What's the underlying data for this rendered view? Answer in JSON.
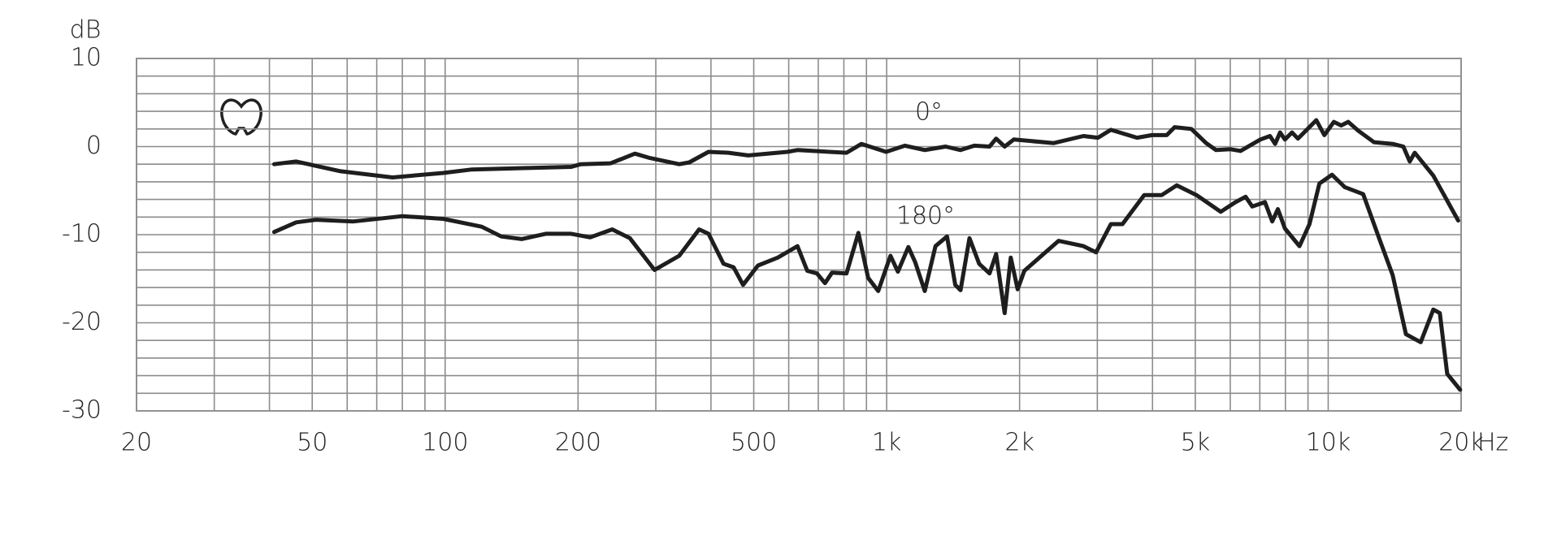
{
  "chart_data": {
    "type": "line",
    "x_label": "Hz",
    "y_label": "dB",
    "xscale": "log",
    "grid": true,
    "xlim": [
      20,
      20000
    ],
    "ylim": [
      -30,
      10
    ],
    "xticks": [
      20,
      50,
      100,
      200,
      500,
      {
        "value": 1000,
        "label": "1k"
      },
      {
        "value": 2000,
        "label": "2k"
      },
      {
        "value": 5000,
        "label": "5k"
      },
      {
        "value": 10000,
        "label": "10k"
      },
      {
        "value": 20000,
        "label": "20k"
      }
    ],
    "yticks": [
      10,
      0,
      -10,
      -20,
      -30
    ],
    "xminor": [
      30,
      40,
      60,
      70,
      80,
      90,
      300,
      400,
      600,
      700,
      800,
      900,
      3000,
      4000,
      6000,
      7000,
      8000,
      9000
    ],
    "yminor": [
      8,
      6,
      4,
      2,
      -2,
      -4,
      -6,
      -8,
      -12,
      -14,
      -16,
      -18,
      -22,
      -24,
      -26,
      -28
    ],
    "series": [
      {
        "name": "0°",
        "color": "#1e1e1e",
        "x": [
          41,
          46,
          58,
          76,
          99,
          115,
          193,
          203,
          237,
          269,
          291,
          339,
          357,
          395,
          438,
          486,
          596,
          628,
          811,
          877,
          997,
          1100,
          1220,
          1360,
          1470,
          1580,
          1710,
          1770,
          1850,
          1940,
          2390,
          2790,
          3010,
          3220,
          3690,
          3990,
          4310,
          4490,
          4900,
          5290,
          5570,
          6010,
          6330,
          7020,
          7380,
          7580,
          7780,
          7980,
          8280,
          8540,
          8980,
          9400,
          9800,
          10300,
          10700,
          11100,
          11700,
          12700,
          14000,
          14800,
          15300,
          15700,
          17300,
          19700
        ],
        "values": [
          -2.0,
          -1.7,
          -2.8,
          -3.5,
          -3.0,
          -2.6,
          -2.3,
          -2.0,
          -1.9,
          -0.8,
          -1.3,
          -2.0,
          -1.8,
          -0.6,
          -0.7,
          -1.0,
          -0.6,
          -0.4,
          -0.7,
          0.3,
          -0.6,
          0.1,
          -0.4,
          0.0,
          -0.4,
          0.1,
          0.0,
          0.9,
          0.0,
          0.8,
          0.4,
          1.2,
          1.0,
          1.9,
          1.0,
          1.3,
          1.3,
          2.2,
          2.0,
          0.4,
          -0.4,
          -0.3,
          -0.5,
          0.8,
          1.2,
          0.3,
          1.6,
          0.8,
          1.6,
          0.9,
          2.0,
          3.0,
          1.3,
          2.8,
          2.4,
          2.8,
          1.8,
          0.5,
          0.3,
          0.0,
          -1.7,
          -0.7,
          -3.3,
          -8.4
        ]
      },
      {
        "name": "180°",
        "color": "#1e1e1e",
        "x": [
          41,
          46,
          51,
          62,
          80,
          99,
          121,
          134,
          149,
          169,
          193,
          213,
          239,
          262,
          298,
          339,
          376,
          395,
          427,
          450,
          473,
          511,
          567,
          628,
          661,
          695,
          725,
          752,
          811,
          863,
          908,
          957,
          1020,
          1060,
          1120,
          1160,
          1220,
          1290,
          1370,
          1430,
          1470,
          1540,
          1620,
          1710,
          1770,
          1850,
          1910,
          1980,
          2050,
          2450,
          2790,
          2980,
          3220,
          3420,
          3830,
          4200,
          4540,
          5030,
          5710,
          6170,
          6500,
          6730,
          7190,
          7470,
          7690,
          7980,
          8610,
          9070,
          9550,
          10200,
          10900,
          12000,
          13000,
          14000,
          15000,
          16200,
          17300,
          17900,
          18600,
          19900
        ],
        "values": [
          -9.7,
          -8.6,
          -8.3,
          -8.5,
          -7.9,
          -8.2,
          -9.1,
          -10.2,
          -10.5,
          -9.9,
          -9.9,
          -10.3,
          -9.4,
          -10.4,
          -14.0,
          -12.4,
          -9.4,
          -9.9,
          -13.3,
          -13.7,
          -15.7,
          -13.5,
          -12.6,
          -11.3,
          -14.1,
          -14.4,
          -15.5,
          -14.3,
          -14.4,
          -9.8,
          -14.9,
          -16.4,
          -12.4,
          -14.2,
          -11.4,
          -13.1,
          -16.4,
          -11.3,
          -10.2,
          -15.7,
          -16.3,
          -10.4,
          -13.3,
          -14.4,
          -12.2,
          -18.9,
          -12.6,
          -16.2,
          -14.1,
          -10.7,
          -11.3,
          -12.0,
          -8.8,
          -8.8,
          -5.5,
          -5.5,
          -4.4,
          -5.5,
          -7.4,
          -6.3,
          -5.7,
          -6.8,
          -6.3,
          -8.5,
          -7.1,
          -9.3,
          -11.3,
          -8.8,
          -4.2,
          -3.2,
          -4.6,
          -5.4,
          -10.2,
          -14.6,
          -21.3,
          -22.2,
          -18.5,
          -18.9,
          -25.8,
          -27.6
        ]
      }
    ]
  }
}
